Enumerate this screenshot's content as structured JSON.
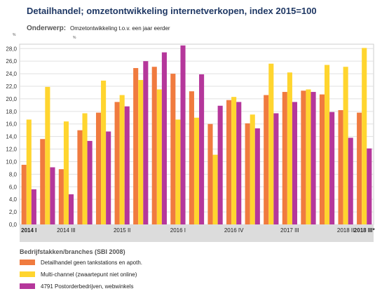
{
  "chart_data": {
    "type": "bar",
    "title": "Detailhandel; omzetontwikkeling internetverkopen, index 2015=100",
    "subject_label": "Onderwerp:",
    "subject": "Omzetontwikkeling t.o.v. een jaar eerder",
    "unit": "%",
    "legend_title": "Bedrijfstakken/branches (SBI 2008)",
    "categories": [
      "2014 I",
      null,
      "2014 III",
      null,
      null,
      "2015 II",
      null,
      null,
      "2016 I",
      null,
      null,
      "2016 IV",
      null,
      null,
      "2017 III",
      null,
      null,
      "2018 II",
      "2018 III*"
    ],
    "series": [
      {
        "name": "Detailhandel geen tankstations en apoth.",
        "color": "#f07b3f",
        "values": [
          9.5,
          13.6,
          8.8,
          15.0,
          17.8,
          19.5,
          24.9,
          25.1,
          24.0,
          21.2,
          16.0,
          19.8,
          16.1,
          20.6,
          21.1,
          21.3,
          20.7,
          18.2,
          17.8
        ]
      },
      {
        "name": "Multi-channel (zwaartepunt niet online)",
        "color": "#ffd52f",
        "values": [
          16.7,
          21.9,
          16.4,
          17.7,
          22.9,
          20.6,
          23.0,
          21.5,
          16.7,
          17.0,
          11.1,
          20.3,
          17.5,
          25.6,
          24.2,
          21.5,
          25.4,
          25.1,
          28.1
        ]
      },
      {
        "name": "4791 Postorderbedrijven, webwinkels",
        "color": "#b5379b",
        "values": [
          5.6,
          9.1,
          4.8,
          13.3,
          14.8,
          18.8,
          26.0,
          27.4,
          28.5,
          23.9,
          18.9,
          19.5,
          15.3,
          17.7,
          19.5,
          21.1,
          17.9,
          13.8,
          12.1
        ]
      }
    ],
    "ylim": [
      0,
      28.7
    ],
    "yticks": [
      {
        "value": 0,
        "label": "0,0"
      },
      {
        "value": 2,
        "label": "2,0"
      },
      {
        "value": 4,
        "label": "4,0"
      },
      {
        "value": 6,
        "label": "6,0"
      },
      {
        "value": 8,
        "label": "8,0"
      },
      {
        "value": 10,
        "label": "10,0"
      },
      {
        "value": 12,
        "label": "12,0"
      },
      {
        "value": 14,
        "label": "14,0"
      },
      {
        "value": 16,
        "label": "16,0"
      },
      {
        "value": 18,
        "label": "18,0"
      },
      {
        "value": 20,
        "label": "20,0"
      },
      {
        "value": 22,
        "label": "22,0"
      },
      {
        "value": 24,
        "label": "24,0"
      },
      {
        "value": 26,
        "label": "26,0"
      },
      {
        "value": 28,
        "label": "28,0"
      }
    ],
    "grid": true
  }
}
